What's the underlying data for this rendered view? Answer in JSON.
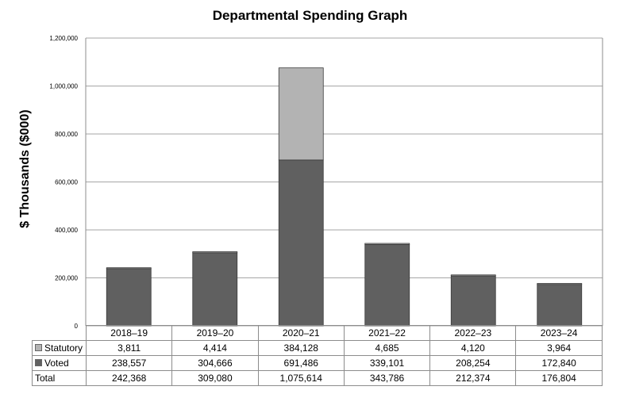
{
  "chart_data": {
    "type": "bar",
    "stacked": true,
    "title": "Departmental Spending Graph",
    "ylabel": "$ Thousands ($000)",
    "xlabel": "",
    "ylim": [
      0,
      1200000
    ],
    "yticks": [
      0,
      200000,
      400000,
      600000,
      800000,
      1000000,
      1200000
    ],
    "ytick_labels": [
      "0",
      "200,000",
      "400,000",
      "600,000",
      "800,000",
      "1,000,000",
      "1,200,000"
    ],
    "grid": true,
    "categories": [
      "2018–19",
      "2019–20",
      "2020–21",
      "2021–22",
      "2022–23",
      "2023–24"
    ],
    "series": [
      {
        "name": "Voted",
        "color": "#606060",
        "values": [
          238557,
          304666,
          691486,
          339101,
          208254,
          172840
        ],
        "labels": [
          "238,557",
          "304,666",
          "691,486",
          "339,101",
          "208,254",
          "172,840"
        ]
      },
      {
        "name": "Statutory",
        "color": "#b3b3b3",
        "values": [
          3811,
          4414,
          384128,
          4685,
          4120,
          3964
        ],
        "labels": [
          "3,811",
          "4,414",
          "384,128",
          "4,685",
          "4,120",
          "3,964"
        ]
      }
    ],
    "total": {
      "name": "Total",
      "values": [
        242368,
        309080,
        1075614,
        343786,
        212374,
        176804
      ],
      "labels": [
        "242,368",
        "309,080",
        "1,075,614",
        "343,786",
        "212,374",
        "176,804"
      ]
    },
    "legend": "data-table"
  }
}
